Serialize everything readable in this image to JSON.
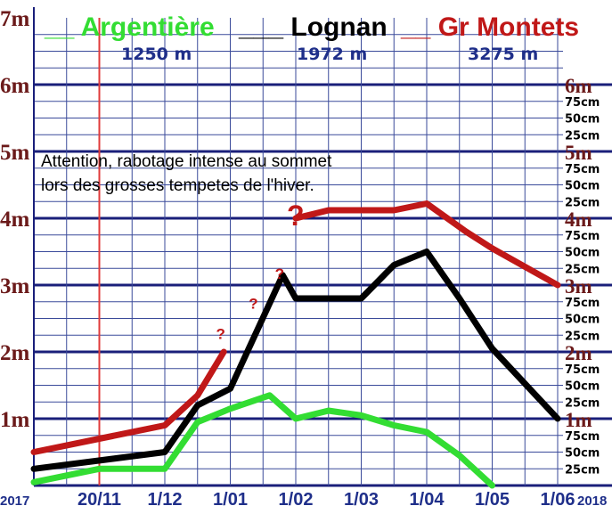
{
  "chart_data": {
    "type": "line",
    "legend": [
      {
        "marker": "__",
        "name": "Argentière",
        "color": "#33dd33",
        "altitude": "1250 m"
      },
      {
        "marker": "___",
        "name": "Lognan",
        "color": "#000000",
        "altitude": "1972 m"
      },
      {
        "marker": "__",
        "name": "Gr Montets",
        "color": "#c01818",
        "altitude": "3275 m"
      }
    ],
    "x_tick_labels": [
      "2017",
      "20/11",
      "1/12",
      "1/01",
      "1/02",
      "1/03",
      "1/04",
      "1/05",
      "1/06",
      "2018"
    ],
    "x_tick_positions": [
      0.4,
      1,
      2,
      3,
      4,
      5,
      6,
      7,
      8,
      8.6
    ],
    "xlim": [
      0,
      8.9
    ],
    "ylim": [
      0,
      7
    ],
    "y_left_labels": [
      "1m",
      "2m",
      "3m",
      "4m",
      "5m",
      "6m",
      "7m"
    ],
    "y_right_major_labels": [
      "1m",
      "2m",
      "3m",
      "4m",
      "5m",
      "6m"
    ],
    "y_right_minor_labels": [
      "25cm",
      "50cm",
      "75cm"
    ],
    "grid": true,
    "series": [
      {
        "name": "Argentière",
        "color": "#33dd33",
        "points": [
          [
            0,
            0.05
          ],
          [
            1,
            0.25
          ],
          [
            2,
            0.25
          ],
          [
            2.5,
            0.95
          ],
          [
            3,
            1.15
          ],
          [
            3.6,
            1.35
          ],
          [
            4,
            1.0
          ],
          [
            4.5,
            1.12
          ],
          [
            5,
            1.05
          ],
          [
            5.5,
            0.9
          ],
          [
            6,
            0.8
          ],
          [
            6.5,
            0.45
          ],
          [
            7,
            0.0
          ]
        ]
      },
      {
        "name": "Lognan",
        "color": "#000000",
        "points": [
          [
            0,
            0.25
          ],
          [
            2,
            0.5
          ],
          [
            2.5,
            1.2
          ],
          [
            3,
            1.45
          ],
          [
            3.8,
            3.15
          ],
          [
            4,
            2.8
          ],
          [
            5,
            2.8
          ],
          [
            5.5,
            3.3
          ],
          [
            6,
            3.5
          ],
          [
            6.5,
            2.8
          ],
          [
            7,
            2.05
          ],
          [
            8,
            1.0
          ]
        ]
      },
      {
        "name": "Gr Montets",
        "color": "#c01818",
        "segments": [
          [
            [
              0,
              0.5
            ],
            [
              2,
              0.9
            ],
            [
              2.5,
              1.35
            ],
            [
              2.9,
              2.0
            ]
          ],
          [
            [
              4,
              4.0
            ],
            [
              4.5,
              4.12
            ],
            [
              5,
              4.12
            ],
            [
              5.5,
              4.12
            ],
            [
              6,
              4.22
            ],
            [
              6.6,
              3.8
            ],
            [
              7,
              3.55
            ],
            [
              8,
              3.0
            ]
          ]
        ],
        "uncertain_markers": [
          [
            2.85,
            2.25
          ],
          [
            3.35,
            2.7
          ],
          [
            3.75,
            3.15
          ],
          [
            4.0,
            4.0
          ]
        ]
      }
    ],
    "vertical_marker": {
      "x": 1,
      "color": "#e03a3a"
    },
    "annotation": [
      "Attention, rabotage intense au sommet",
      "lors des grosses tempetes de l'hiver."
    ]
  }
}
